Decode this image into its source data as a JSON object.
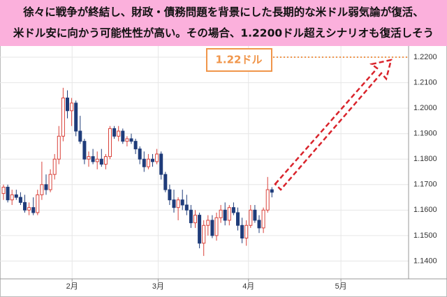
{
  "chart_data": {
    "type": "candlestick",
    "title": "徐々に戦争が終結し、財政・債務問題を背景にした長期的な米ドル弱気論が復活、",
    "subtitle": "米ドル安に向かう可能性性が高い。その場合、1.2200ドル超えシナリオも復活しそう",
    "annotation": "1.22ドル",
    "x": [
      0,
      1,
      2,
      3,
      4,
      5,
      6,
      7,
      8,
      9,
      10,
      11,
      12,
      13,
      14,
      15,
      16,
      17,
      18,
      19,
      20,
      21,
      22,
      23,
      24,
      25,
      26,
      27,
      28,
      29,
      30,
      31,
      32,
      33,
      34,
      35,
      36,
      37,
      38,
      39,
      40,
      41,
      42,
      43,
      44,
      45,
      46,
      47,
      48,
      49,
      50,
      51,
      52,
      53,
      54,
      55,
      56,
      57,
      58,
      59,
      60,
      61,
      62,
      63
    ],
    "open": [
      1.1665,
      1.169,
      1.164,
      1.166,
      1.165,
      1.163,
      1.16,
      1.161,
      1.159,
      1.166,
      1.17,
      1.168,
      1.174,
      1.18,
      1.189,
      1.204,
      1.199,
      1.202,
      1.191,
      1.187,
      1.18,
      1.181,
      1.179,
      1.18,
      1.178,
      1.181,
      1.192,
      1.189,
      1.191,
      1.187,
      1.188,
      1.187,
      1.184,
      1.18,
      1.177,
      1.18,
      1.179,
      1.182,
      1.174,
      1.168,
      1.164,
      1.161,
      1.164,
      1.162,
      1.16,
      1.155,
      1.158,
      1.147,
      1.154,
      1.156,
      1.15,
      1.157,
      1.16,
      1.156,
      1.161,
      1.159,
      1.154,
      1.149,
      1.154,
      1.16,
      1.156,
      1.153,
      1.16,
      1.168
    ],
    "high": [
      1.17,
      1.17,
      1.168,
      1.168,
      1.167,
      1.166,
      1.163,
      1.165,
      1.168,
      1.179,
      1.174,
      1.176,
      1.182,
      1.193,
      1.208,
      1.207,
      1.204,
      1.203,
      1.197,
      1.188,
      1.183,
      1.184,
      1.183,
      1.184,
      1.182,
      1.193,
      1.193,
      1.193,
      1.192,
      1.189,
      1.19,
      1.188,
      1.185,
      1.183,
      1.182,
      1.182,
      1.184,
      1.183,
      1.175,
      1.17,
      1.168,
      1.165,
      1.168,
      1.166,
      1.162,
      1.16,
      1.159,
      1.156,
      1.158,
      1.158,
      1.159,
      1.162,
      1.163,
      1.162,
      1.163,
      1.161,
      1.157,
      1.156,
      1.162,
      1.162,
      1.158,
      1.161,
      1.173,
      1.169
    ],
    "low": [
      1.164,
      1.163,
      1.162,
      1.164,
      1.162,
      1.159,
      1.158,
      1.158,
      1.158,
      1.164,
      1.166,
      1.167,
      1.172,
      1.178,
      1.187,
      1.196,
      1.193,
      1.189,
      1.186,
      1.178,
      1.177,
      1.178,
      1.176,
      1.177,
      1.176,
      1.18,
      1.188,
      1.187,
      1.186,
      1.185,
      1.186,
      1.182,
      1.178,
      1.175,
      1.176,
      1.177,
      1.178,
      1.172,
      1.167,
      1.162,
      1.159,
      1.156,
      1.16,
      1.158,
      1.153,
      1.153,
      1.145,
      1.142,
      1.15,
      1.149,
      1.148,
      1.155,
      1.154,
      1.154,
      1.158,
      1.152,
      1.147,
      1.146,
      1.153,
      1.155,
      1.151,
      1.151,
      1.159,
      1.165
    ],
    "close": [
      1.169,
      1.164,
      1.166,
      1.165,
      1.163,
      1.16,
      1.161,
      1.159,
      1.166,
      1.17,
      1.168,
      1.174,
      1.18,
      1.189,
      1.204,
      1.199,
      1.202,
      1.191,
      1.187,
      1.18,
      1.181,
      1.179,
      1.18,
      1.178,
      1.181,
      1.192,
      1.189,
      1.191,
      1.187,
      1.188,
      1.187,
      1.184,
      1.18,
      1.177,
      1.18,
      1.179,
      1.182,
      1.174,
      1.168,
      1.164,
      1.161,
      1.164,
      1.162,
      1.16,
      1.155,
      1.158,
      1.147,
      1.154,
      1.156,
      1.15,
      1.157,
      1.16,
      1.156,
      1.161,
      1.159,
      1.154,
      1.149,
      1.154,
      1.16,
      1.156,
      1.153,
      1.16,
      1.168,
      1.167
    ],
    "up_color": "#d9413a",
    "down_color": "#1f3c7a",
    "xlim": [
      -0.82,
      95.08
    ],
    "xticks": [
      {
        "value": 16.1,
        "label": "2月"
      },
      {
        "value": 36.3,
        "label": "3月"
      },
      {
        "value": 57.5,
        "label": "4月"
      },
      {
        "value": 79.2,
        "label": "5月"
      }
    ],
    "ylim": [
      1.133,
      1.2233
    ],
    "yticks": [
      {
        "value": 1.22,
        "label": "1.2200"
      },
      {
        "value": 1.21,
        "label": "1.2100"
      },
      {
        "value": 1.2,
        "label": "1.2000"
      },
      {
        "value": 1.19,
        "label": "1.1900"
      },
      {
        "value": 1.18,
        "label": "1.1800"
      },
      {
        "value": 1.17,
        "label": "1.1700"
      },
      {
        "value": 1.16,
        "label": "1.1600"
      },
      {
        "value": 1.15,
        "label": "1.1500"
      },
      {
        "value": 1.14,
        "label": "1.1400"
      }
    ],
    "grid": true
  }
}
